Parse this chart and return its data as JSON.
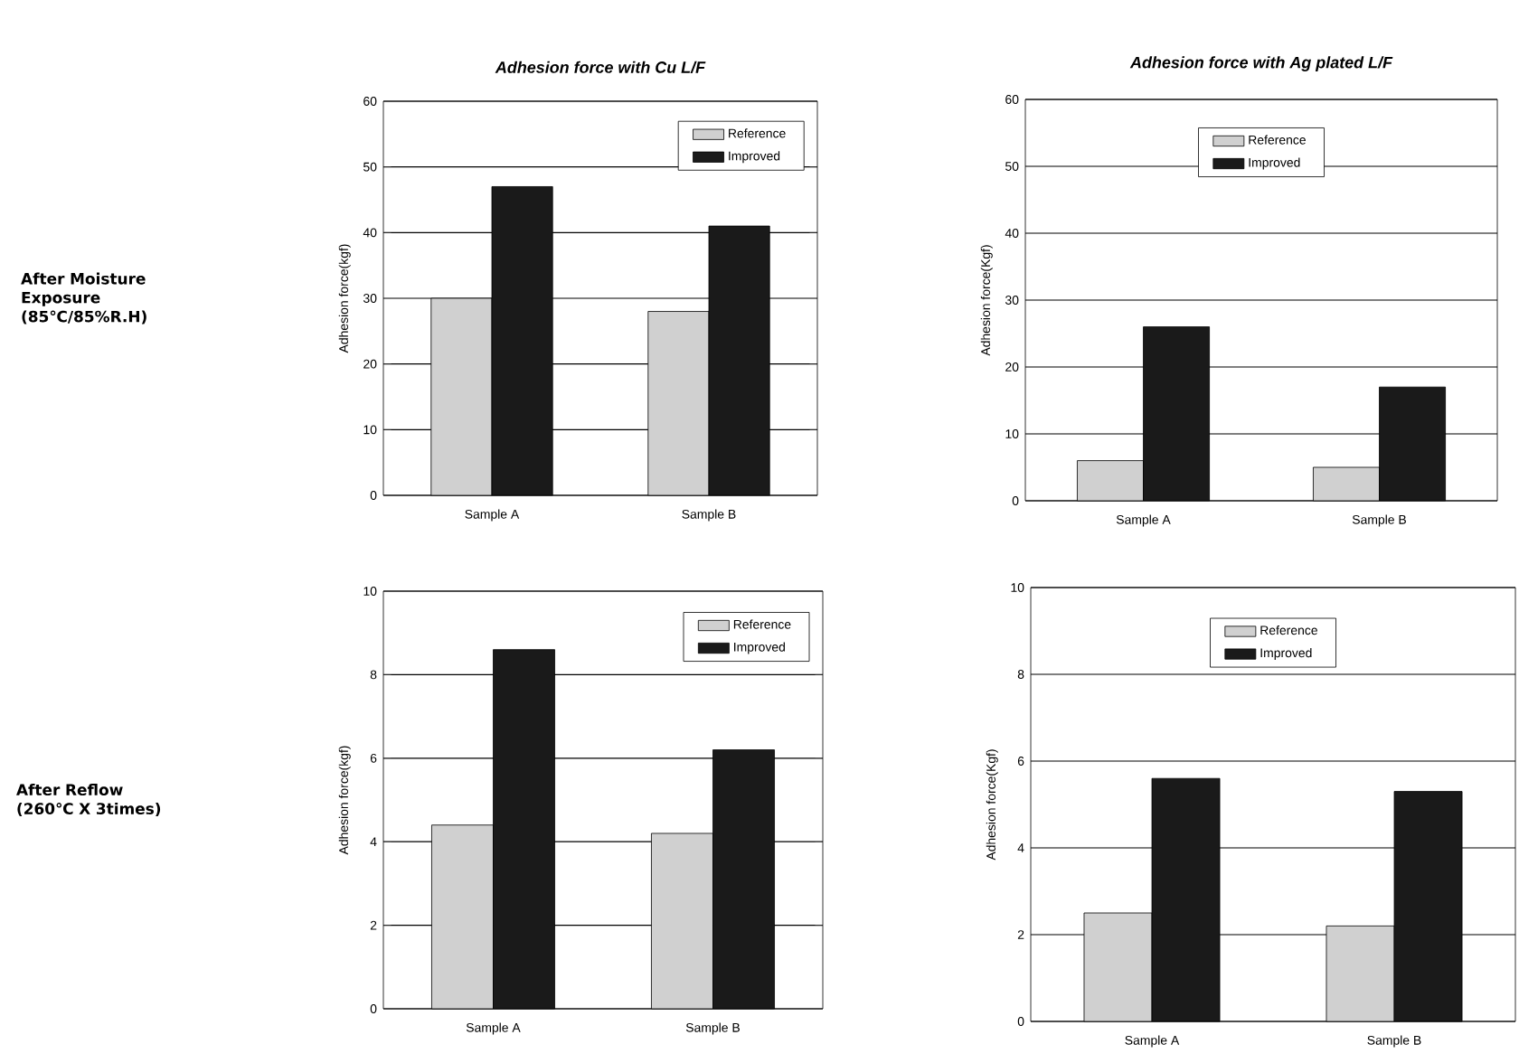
{
  "chart_data": [
    {
      "type": "bar",
      "title": "Adhesion force with Cu L/F",
      "ylabel": "Adhesion force(kgf)",
      "categories": [
        "Sample A",
        "Sample B"
      ],
      "series": [
        {
          "name": "Reference",
          "color": "#d0d0d0",
          "values": [
            30,
            28
          ]
        },
        {
          "name": "Improved",
          "color": "#1a1a1a",
          "values": [
            47,
            41
          ]
        }
      ],
      "ylim": [
        0,
        60
      ],
      "yticks": [
        0,
        10,
        20,
        30,
        40,
        50,
        60
      ],
      "grid": "y",
      "legend": "top right",
      "annotations": [
        "After Moisture Exposure (85℃/85%R.H)"
      ]
    },
    {
      "type": "bar",
      "title": "Adhesion force with Ag plated L/F",
      "ylabel": "Adhesion force(Kgf)",
      "categories": [
        "Sample A",
        "Sample B"
      ],
      "series": [
        {
          "name": "Reference",
          "color": "#d0d0d0",
          "values": [
            6,
            5
          ]
        },
        {
          "name": "Improved",
          "color": "#1a1a1a",
          "values": [
            26,
            17
          ]
        }
      ],
      "ylim": [
        0,
        60
      ],
      "yticks": [
        0,
        10,
        20,
        30,
        40,
        50,
        60
      ],
      "grid": "y",
      "legend": "top"
    },
    {
      "type": "bar",
      "ylabel": "Adhesion force(kgf)",
      "categories": [
        "Sample A",
        "Sample B"
      ],
      "series": [
        {
          "name": "Reference",
          "color": "#d0d0d0",
          "values": [
            4.4,
            4.2
          ]
        },
        {
          "name": "Improved",
          "color": "#1a1a1a",
          "values": [
            8.6,
            6.2
          ]
        }
      ],
      "ylim": [
        0,
        10
      ],
      "yticks": [
        0,
        2,
        4,
        6,
        8,
        10
      ],
      "grid": "y",
      "legend": "top right",
      "annotations": [
        "After Reflow (260℃ X 3times)"
      ]
    },
    {
      "type": "bar",
      "ylabel": "Adhesion force(Kgf)",
      "categories": [
        "Sample A",
        "Sample B"
      ],
      "series": [
        {
          "name": "Reference",
          "color": "#d0d0d0",
          "values": [
            2.5,
            2.2
          ]
        },
        {
          "name": "Improved",
          "color": "#1a1a1a",
          "values": [
            5.6,
            5.3
          ]
        }
      ],
      "ylim": [
        0,
        10
      ],
      "yticks": [
        0,
        2,
        4,
        6,
        8,
        10
      ],
      "grid": "y",
      "legend": "top"
    }
  ]
}
